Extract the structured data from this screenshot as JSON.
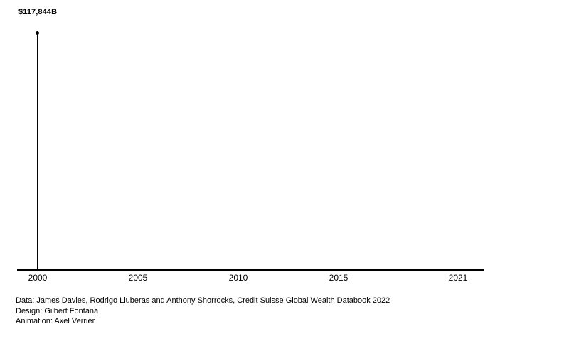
{
  "chart_data": {
    "type": "line",
    "title": "",
    "x": [
      2000
    ],
    "values": [
      117844
    ],
    "current_value_label": "$117,844B",
    "x_ticks": [
      "2000",
      "2005",
      "2010",
      "2015",
      "2021"
    ],
    "xlim": [
      2000,
      2022
    ],
    "grid": false,
    "legend": "none",
    "colors": {
      "line": "#000000",
      "point": "#000000",
      "axis": "#000000",
      "text": "#000000",
      "background": "#ffffff"
    }
  },
  "footer": {
    "credits": [
      "Data: James Davies, Rodrigo Lluberas and Anthony Shorrocks, Credit Suisse Global Wealth Databook 2022",
      "Design: Gilbert Fontana",
      "Animation: Axel Verrier"
    ]
  }
}
